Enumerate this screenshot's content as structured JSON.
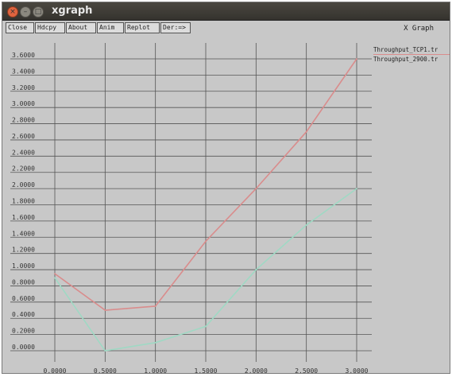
{
  "window": {
    "title": "xgraph",
    "buttons": [
      "×",
      "–",
      "□"
    ]
  },
  "toolbar": {
    "close_label": "Close",
    "hdcpy_label": "Hdcpy",
    "about_label": "About",
    "anim_label": "Anim",
    "replot_label": "Replot",
    "deriv_label": "Der:=>"
  },
  "graph_label": "X Graph",
  "colors": {
    "background": "#c8c8c8",
    "grid": "#555555",
    "series_tcp": "#d98c8c",
    "series_other": "#9fd9c4"
  },
  "chart_data": {
    "type": "line",
    "xlim": [
      0,
      3
    ],
    "ylim": [
      0,
      3.6
    ],
    "grid": true,
    "legend_position": "top-right, outside plot",
    "x_ticks": [
      "0.0000",
      "0.5000",
      "1.0000",
      "1.5000",
      "2.0000",
      "2.5000",
      "3.0000"
    ],
    "y_ticks": [
      "0.0000",
      "0.2000",
      "0.4000",
      "0.6000",
      "0.8000",
      "1.0000",
      "1.2000",
      "1.4000",
      "1.6000",
      "1.8000",
      "2.0000",
      "2.2000",
      "2.4000",
      "2.6000",
      "2.8000",
      "3.0000",
      "3.2000",
      "3.4000",
      "3.6000"
    ],
    "series": [
      {
        "name": "Throughput_TCP1.tr",
        "color": "#d98c8c",
        "x": [
          0,
          0.5,
          1.0,
          1.5,
          2.0,
          2.5,
          3.0
        ],
        "y": [
          0.95,
          0.5,
          0.55,
          1.35,
          2.0,
          2.7,
          3.6
        ]
      },
      {
        "name": "Throughput_2900.tr",
        "color": "#9fd9c4",
        "x": [
          0,
          0.5,
          1.0,
          1.5,
          2.0,
          2.5,
          3.0
        ],
        "y": [
          0.9,
          0.0,
          0.1,
          0.3,
          1.0,
          1.55,
          2.0
        ]
      }
    ]
  }
}
